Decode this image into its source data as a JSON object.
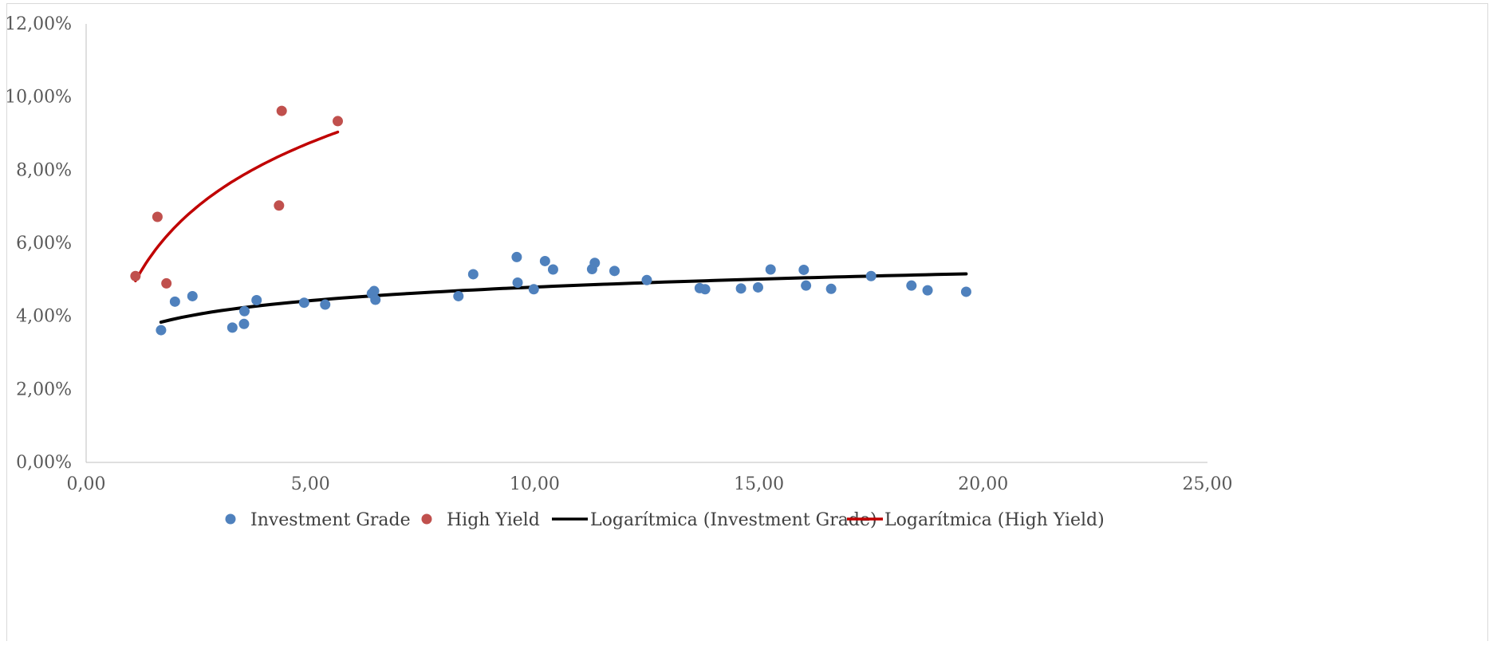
{
  "chart_data": {
    "type": "scatter",
    "title": "",
    "xlabel": "",
    "ylabel": "",
    "xlim": [
      0,
      25
    ],
    "ylim": [
      0,
      12
    ],
    "x_ticks": [
      "0,00",
      "5,00",
      "10,00",
      "15,00",
      "20,00",
      "25,00"
    ],
    "x_tick_values": [
      0,
      5,
      10,
      15,
      20,
      25
    ],
    "y_ticks": [
      "0,00%",
      "2,00%",
      "4,00%",
      "6,00%",
      "8,00%",
      "10,00%",
      "12,00%"
    ],
    "y_tick_values": [
      0,
      2,
      4,
      6,
      8,
      10,
      12
    ],
    "grid": false,
    "legend_position": "bottom",
    "series": [
      {
        "name": "Investment Grade",
        "color": "#4f81bd",
        "points": [
          [
            1.67,
            3.62
          ],
          [
            1.98,
            4.4
          ],
          [
            2.37,
            4.55
          ],
          [
            3.26,
            3.69
          ],
          [
            3.52,
            3.79
          ],
          [
            3.53,
            4.14
          ],
          [
            3.8,
            4.44
          ],
          [
            4.86,
            4.37
          ],
          [
            5.33,
            4.32
          ],
          [
            6.37,
            4.62
          ],
          [
            6.42,
            4.69
          ],
          [
            6.45,
            4.45
          ],
          [
            8.3,
            4.55
          ],
          [
            8.63,
            5.15
          ],
          [
            9.6,
            5.62
          ],
          [
            9.62,
            4.92
          ],
          [
            9.98,
            4.74
          ],
          [
            10.23,
            5.51
          ],
          [
            10.41,
            5.28
          ],
          [
            11.28,
            5.29
          ],
          [
            11.34,
            5.46
          ],
          [
            11.78,
            5.24
          ],
          [
            12.5,
            4.99
          ],
          [
            13.68,
            4.77
          ],
          [
            13.8,
            4.74
          ],
          [
            14.6,
            4.76
          ],
          [
            14.98,
            4.79
          ],
          [
            15.26,
            5.28
          ],
          [
            16.0,
            5.27
          ],
          [
            16.05,
            4.84
          ],
          [
            16.61,
            4.75
          ],
          [
            17.5,
            5.1
          ],
          [
            18.4,
            4.84
          ],
          [
            18.76,
            4.71
          ],
          [
            19.62,
            4.67
          ]
        ]
      },
      {
        "name": "High Yield",
        "color": "#c0504d",
        "points": [
          [
            1.1,
            5.1
          ],
          [
            1.59,
            6.72
          ],
          [
            1.79,
            4.9
          ],
          [
            4.3,
            7.03
          ],
          [
            4.36,
            9.62
          ],
          [
            5.61,
            9.34
          ]
        ]
      }
    ],
    "trendlines": [
      {
        "name": "Logarítmica (Investment Grade)",
        "type": "logarithmic",
        "color": "#000000",
        "x_range": [
          1.67,
          19.62
        ],
        "a": 3.563,
        "b": 0.5367
      },
      {
        "name": "Logarítmica (High Yield)",
        "type": "logarithmic",
        "color": "#c00000",
        "x_range": [
          1.1,
          5.61
        ],
        "a": 4.73,
        "b": 2.5
      }
    ]
  }
}
